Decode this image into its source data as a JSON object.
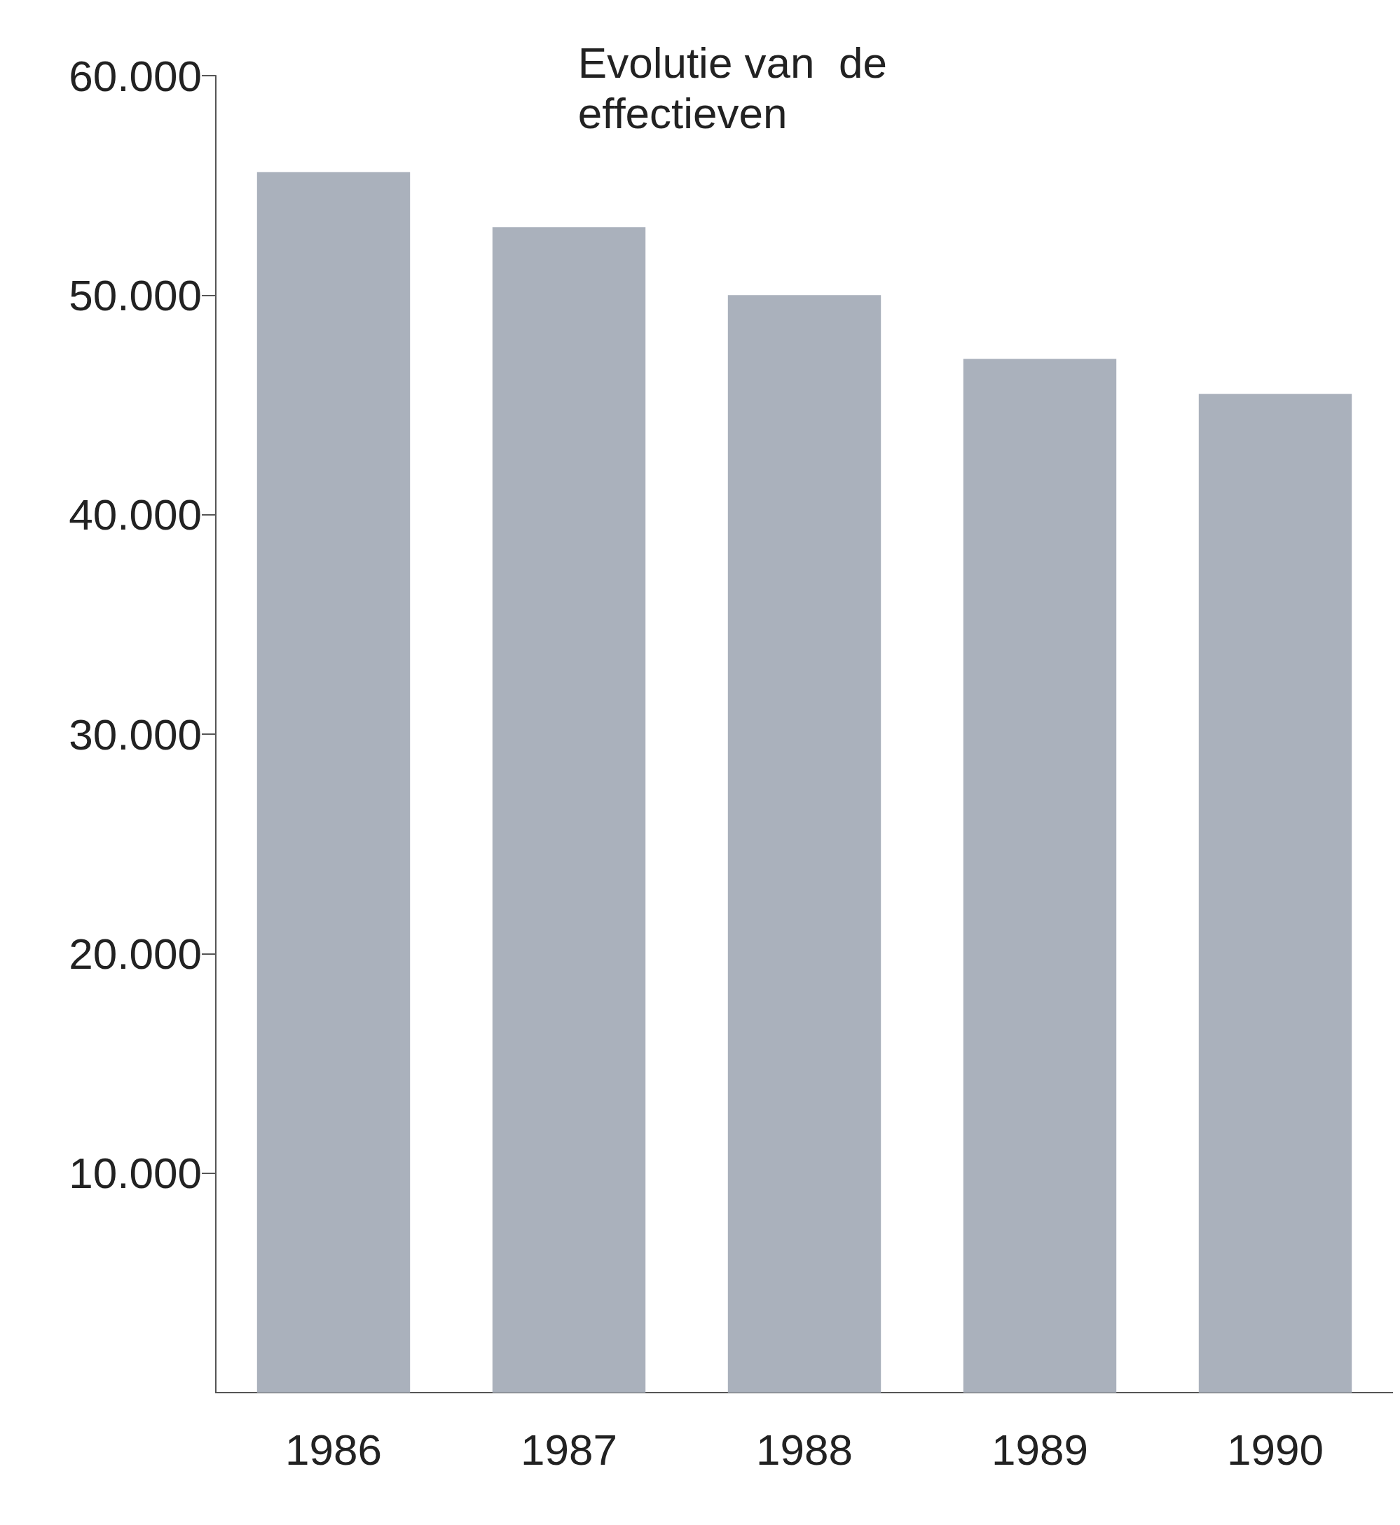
{
  "chart_data": {
    "type": "bar",
    "title": "Evolutie van  de effectieven",
    "categories": [
      "1986",
      "1987",
      "1988",
      "1989",
      "1990"
    ],
    "values": [
      55600,
      53100,
      50000,
      47100,
      45500
    ],
    "color": "#aab1bc",
    "ylim": [
      0,
      60000
    ],
    "yticks": [
      {
        "value": 10000,
        "label": "10.000"
      },
      {
        "value": 20000,
        "label": "20.000"
      },
      {
        "value": 30000,
        "label": "30.000"
      },
      {
        "value": 40000,
        "label": "40.000"
      },
      {
        "value": 50000,
        "label": "50.000"
      },
      {
        "value": 60000,
        "label": "60.000"
      }
    ],
    "grid": false
  }
}
